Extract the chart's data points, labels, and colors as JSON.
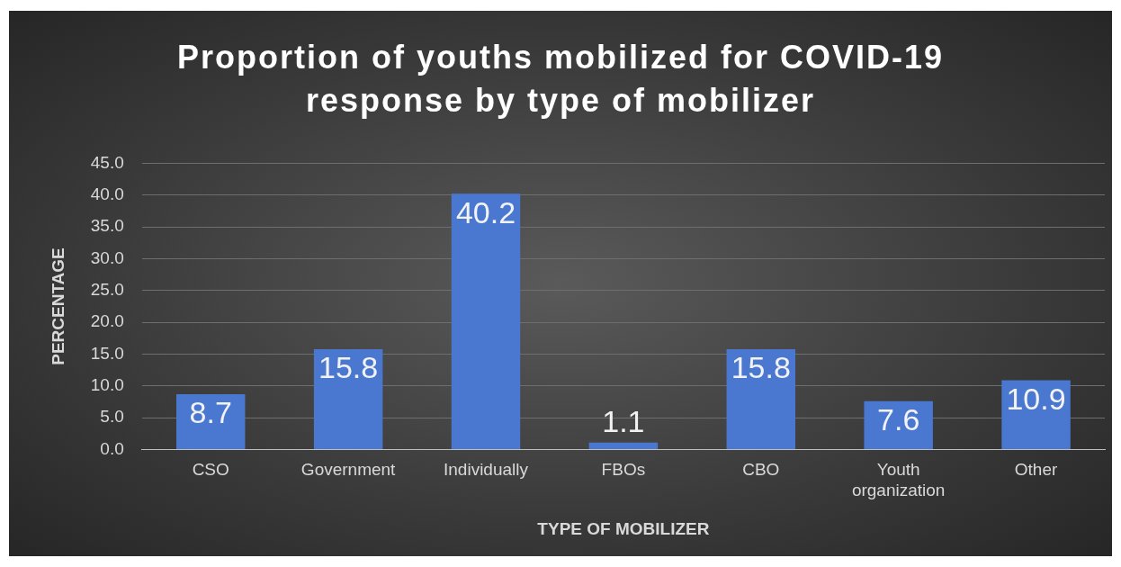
{
  "chart_data": {
    "type": "bar",
    "title": "Proportion of youths mobilized for COVID-19 response by type of mobilizer",
    "xlabel": "TYPE OF MOBILIZER",
    "ylabel": "PERCENTAGE",
    "categories": [
      "CSO",
      "Government",
      "Individually",
      "FBOs",
      "CBO",
      "Youth organization",
      "Other"
    ],
    "values": [
      8.7,
      15.8,
      40.2,
      1.1,
      15.8,
      7.6,
      10.9
    ],
    "color": "#4a78d0",
    "ylim": [
      0,
      45
    ],
    "yticks": [
      {
        "value": 0,
        "label": "0.0"
      },
      {
        "value": 5,
        "label": "5.0"
      },
      {
        "value": 10,
        "label": "10.0"
      },
      {
        "value": 15,
        "label": "15.0"
      },
      {
        "value": 20,
        "label": "20.0"
      },
      {
        "value": 25,
        "label": "25.0"
      },
      {
        "value": 30,
        "label": "30.0"
      },
      {
        "value": 35,
        "label": "35.0"
      },
      {
        "value": 40,
        "label": "40.0"
      },
      {
        "value": 45,
        "label": "45.0"
      }
    ],
    "grid": "y",
    "data_labels": true
  }
}
